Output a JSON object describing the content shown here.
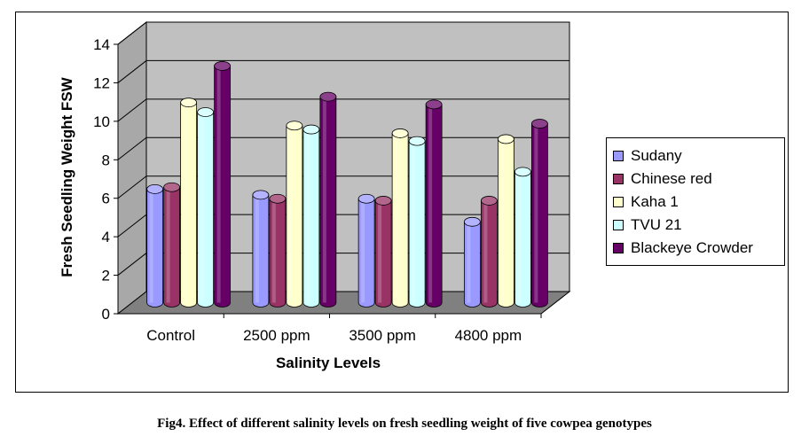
{
  "chart_data": {
    "type": "bar",
    "title": "",
    "xlabel": "Salinity Levels",
    "ylabel": "Fresh Seedling Weight FSW",
    "ylim": [
      0,
      14
    ],
    "yticks": [
      0,
      2,
      4,
      6,
      8,
      10,
      12,
      14
    ],
    "grid": true,
    "legend_position": "right",
    "categories": [
      "Control",
      "2500 ppm",
      "3500 ppm",
      "4800 ppm"
    ],
    "series": [
      {
        "name": "Sudany",
        "color": "#9999ff",
        "values": [
          5.9,
          5.6,
          5.4,
          4.2
        ]
      },
      {
        "name": "Chinese red",
        "color": "#993366",
        "values": [
          6.0,
          5.4,
          5.3,
          5.3
        ]
      },
      {
        "name": "Kaha 1",
        "color": "#ffffcc",
        "values": [
          10.4,
          9.2,
          8.8,
          8.5
        ]
      },
      {
        "name": "TVU 21",
        "color": "#ccffff",
        "values": [
          9.9,
          9.0,
          8.4,
          6.8
        ]
      },
      {
        "name": "Blackeye Crowder",
        "color": "#660066",
        "values": [
          12.3,
          10.7,
          10.3,
          9.3
        ]
      }
    ]
  },
  "caption": "Fig4. Effect of different salinity levels on fresh seedling weight of five cowpea genotypes",
  "colors": {
    "wall": "#c0c0c0",
    "floor": "#808080",
    "side_wall": "#a8a8a8"
  }
}
